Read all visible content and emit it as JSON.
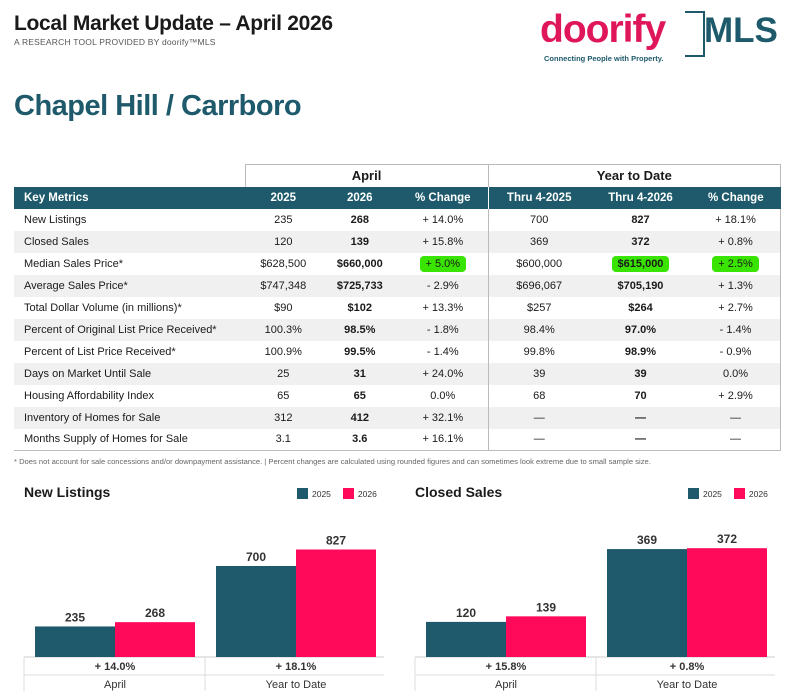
{
  "header": {
    "title": "Local Market Update – April 2026",
    "subtitle": "A RESEARCH TOOL PROVIDED BY doorify™MLS"
  },
  "logo": {
    "word": "doorify",
    "mls": "MLS",
    "tagline": "Connecting People with Property."
  },
  "area": "Chapel Hill / Carrboro",
  "table": {
    "group_april": "April",
    "group_ytd": "Year to Date",
    "headers": [
      "Key Metrics",
      "2025",
      "2026",
      "% Change",
      "Thru 4-2025",
      "Thru 4-2026",
      "% Change"
    ],
    "rows": [
      {
        "metric": "New Listings",
        "a2025": "235",
        "a2026": "268",
        "achg": "+ 14.0%",
        "y2025": "700",
        "y2026": "827",
        "ychg": "+ 18.1%"
      },
      {
        "metric": "Closed Sales",
        "a2025": "120",
        "a2026": "139",
        "achg": "+ 15.8%",
        "y2025": "369",
        "y2026": "372",
        "ychg": "+ 0.8%"
      },
      {
        "metric": "Median Sales Price*",
        "a2025": "$628,500",
        "a2026": "$660,000",
        "achg": "+ 5.0%",
        "y2025": "$600,000",
        "y2026": "$615,000",
        "ychg": "+ 2.5%"
      },
      {
        "metric": "Average Sales Price*",
        "a2025": "$747,348",
        "a2026": "$725,733",
        "achg": "- 2.9%",
        "y2025": "$696,067",
        "y2026": "$705,190",
        "ychg": "+ 1.3%"
      },
      {
        "metric": "Total Dollar Volume (in millions)*",
        "a2025": "$90",
        "a2026": "$102",
        "achg": "+ 13.3%",
        "y2025": "$257",
        "y2026": "$264",
        "ychg": "+ 2.7%"
      },
      {
        "metric": "Percent of Original List Price Received*",
        "a2025": "100.3%",
        "a2026": "98.5%",
        "achg": "- 1.8%",
        "y2025": "98.4%",
        "y2026": "97.0%",
        "ychg": "- 1.4%"
      },
      {
        "metric": "Percent of List Price Received*",
        "a2025": "100.9%",
        "a2026": "99.5%",
        "achg": "- 1.4%",
        "y2025": "99.8%",
        "y2026": "98.9%",
        "ychg": "- 0.9%"
      },
      {
        "metric": "Days on Market Until Sale",
        "a2025": "25",
        "a2026": "31",
        "achg": "+ 24.0%",
        "y2025": "39",
        "y2026": "39",
        "ychg": "0.0%"
      },
      {
        "metric": "Housing Affordability Index",
        "a2025": "65",
        "a2026": "65",
        "achg": "0.0%",
        "y2025": "68",
        "y2026": "70",
        "ychg": "+ 2.9%"
      },
      {
        "metric": "Inventory of Homes for Sale",
        "a2025": "312",
        "a2026": "412",
        "achg": "+ 32.1%",
        "y2025": "—",
        "y2026": "—",
        "ychg": "—"
      },
      {
        "metric": "Months Supply of Homes for Sale",
        "a2025": "3.1",
        "a2026": "3.6",
        "achg": "+ 16.1%",
        "y2025": "—",
        "y2026": "—",
        "ychg": "—"
      }
    ],
    "highlighted": [
      "2.achg",
      "2.y2026",
      "2.ychg"
    ]
  },
  "footnote": "* Does not account for sale concessions and/or downpayment assistance. | Percent changes are calculated using rounded figures and can sometimes look extreme due to small sample size.",
  "colors": {
    "teal": "#1e5a6b",
    "pink": "#ff0a5a",
    "highlight": "#38e400"
  },
  "chart_data": [
    {
      "type": "bar",
      "title": "New Listings",
      "categories": [
        "April",
        "Year to Date"
      ],
      "series": [
        {
          "name": "2025",
          "values": [
            235,
            700
          ]
        },
        {
          "name": "2026",
          "values": [
            268,
            827
          ]
        }
      ],
      "changes": [
        "+ 14.0%",
        "+ 18.1%"
      ],
      "legend": "top-right",
      "ylim": [
        0,
        900
      ]
    },
    {
      "type": "bar",
      "title": "Closed Sales",
      "categories": [
        "April",
        "Year to Date"
      ],
      "series": [
        {
          "name": "2025",
          "values": [
            120,
            369
          ]
        },
        {
          "name": "2026",
          "values": [
            139,
            372
          ]
        }
      ],
      "changes": [
        "+ 15.8%",
        "+ 0.8%"
      ],
      "legend": "top-right",
      "ylim": [
        0,
        400
      ]
    }
  ]
}
